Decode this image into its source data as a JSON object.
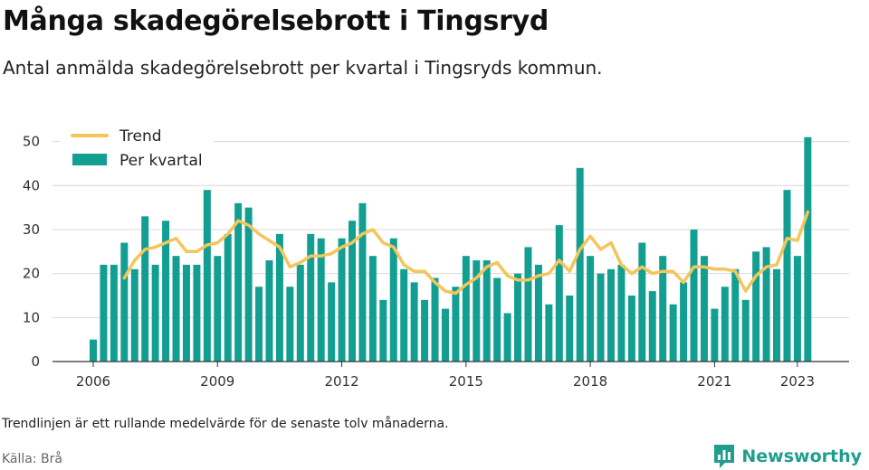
{
  "header": {
    "title": "Många skadegörelsebrott i Tingsryd",
    "subtitle": "Antal anmälda skadegörelsebrott per kvartal i Tingsryds kommun."
  },
  "footer": {
    "note": "Trendlinjen är ett rullande medelvärde för de senaste tolv månaderna.",
    "source": "Källa: Brå",
    "brand": "Newsworthy"
  },
  "colors": {
    "bars": "#129f92",
    "trend": "#f4c55a",
    "grid": "#d9d9d9",
    "brand": "#1f9e8e"
  },
  "chart_data": {
    "type": "bar",
    "x_unit": "quarter",
    "x_start": "2006-Q1",
    "ylim": [
      0,
      53
    ],
    "yticks": [
      0,
      10,
      20,
      30,
      40,
      50
    ],
    "xticks": [
      {
        "label": "2006",
        "year": 2006
      },
      {
        "label": "2009",
        "year": 2009
      },
      {
        "label": "2012",
        "year": 2012
      },
      {
        "label": "2015",
        "year": 2015
      },
      {
        "label": "2018",
        "year": 2018
      },
      {
        "label": "2021",
        "year": 2021
      },
      {
        "label": "2023",
        "year": 2023
      }
    ],
    "legend": {
      "position": "top-left",
      "entries": [
        "Trend",
        "Per kvartal"
      ]
    },
    "grid": "horizontal",
    "series": [
      {
        "name": "Per kvartal",
        "type": "bar",
        "values": [
          5,
          22,
          22,
          27,
          21,
          33,
          22,
          32,
          24,
          22,
          22,
          39,
          24,
          29,
          36,
          35,
          17,
          23,
          29,
          17,
          22,
          29,
          28,
          18,
          28,
          32,
          36,
          24,
          14,
          28,
          21,
          18,
          14,
          19,
          12,
          17,
          24,
          23,
          23,
          19,
          11,
          20,
          26,
          22,
          13,
          31,
          15,
          44,
          24,
          20,
          21,
          22,
          15,
          27,
          16,
          24,
          13,
          18,
          30,
          24,
          12,
          17,
          21,
          14,
          25,
          26,
          21,
          39,
          24,
          51
        ]
      },
      {
        "name": "Trend",
        "type": "line",
        "values": [
          null,
          null,
          null,
          19,
          23,
          25.5,
          26,
          27,
          28,
          25,
          25,
          26.5,
          27,
          29,
          32,
          31,
          29,
          27.5,
          26,
          21.5,
          22.5,
          24,
          24,
          24.5,
          26,
          27,
          29,
          30,
          27,
          26,
          22,
          20.5,
          20.5,
          18,
          16,
          15.5,
          17.5,
          19,
          21.5,
          22.5,
          19.5,
          18.5,
          18.5,
          19.5,
          20,
          23,
          20.5,
          25.5,
          28.5,
          25.5,
          27,
          22,
          20,
          21.5,
          20,
          20.5,
          20.5,
          18,
          21.5,
          21.5,
          21,
          21,
          20.5,
          16,
          19.5,
          21.5,
          22,
          28,
          27.5,
          34
        ]
      }
    ]
  }
}
